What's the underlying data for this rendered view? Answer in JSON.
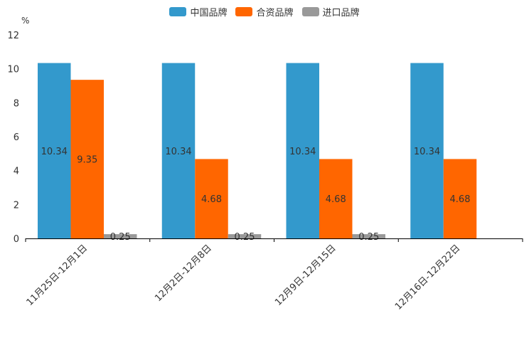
{
  "chart_data": {
    "type": "bar",
    "unit_label": "%",
    "categories": [
      "11月25日-12月1日",
      "12月2日-12月8日",
      "12月9日-12月15日",
      "12月16日-12月22日"
    ],
    "series": [
      {
        "name": "中国品牌",
        "color": "#3399cc",
        "values": [
          10.34,
          10.34,
          10.34,
          10.34
        ]
      },
      {
        "name": "合资品牌",
        "color": "#ff6600",
        "values": [
          9.35,
          4.68,
          4.68,
          4.68
        ]
      },
      {
        "name": "进口品牌",
        "color": "#999999",
        "values": [
          0.25,
          0.25,
          0.25,
          null
        ]
      }
    ],
    "ylim": [
      0,
      12
    ],
    "yticks": [
      0,
      2,
      4,
      6,
      8,
      10,
      12
    ],
    "legend_position": "top-center",
    "grid": false
  }
}
